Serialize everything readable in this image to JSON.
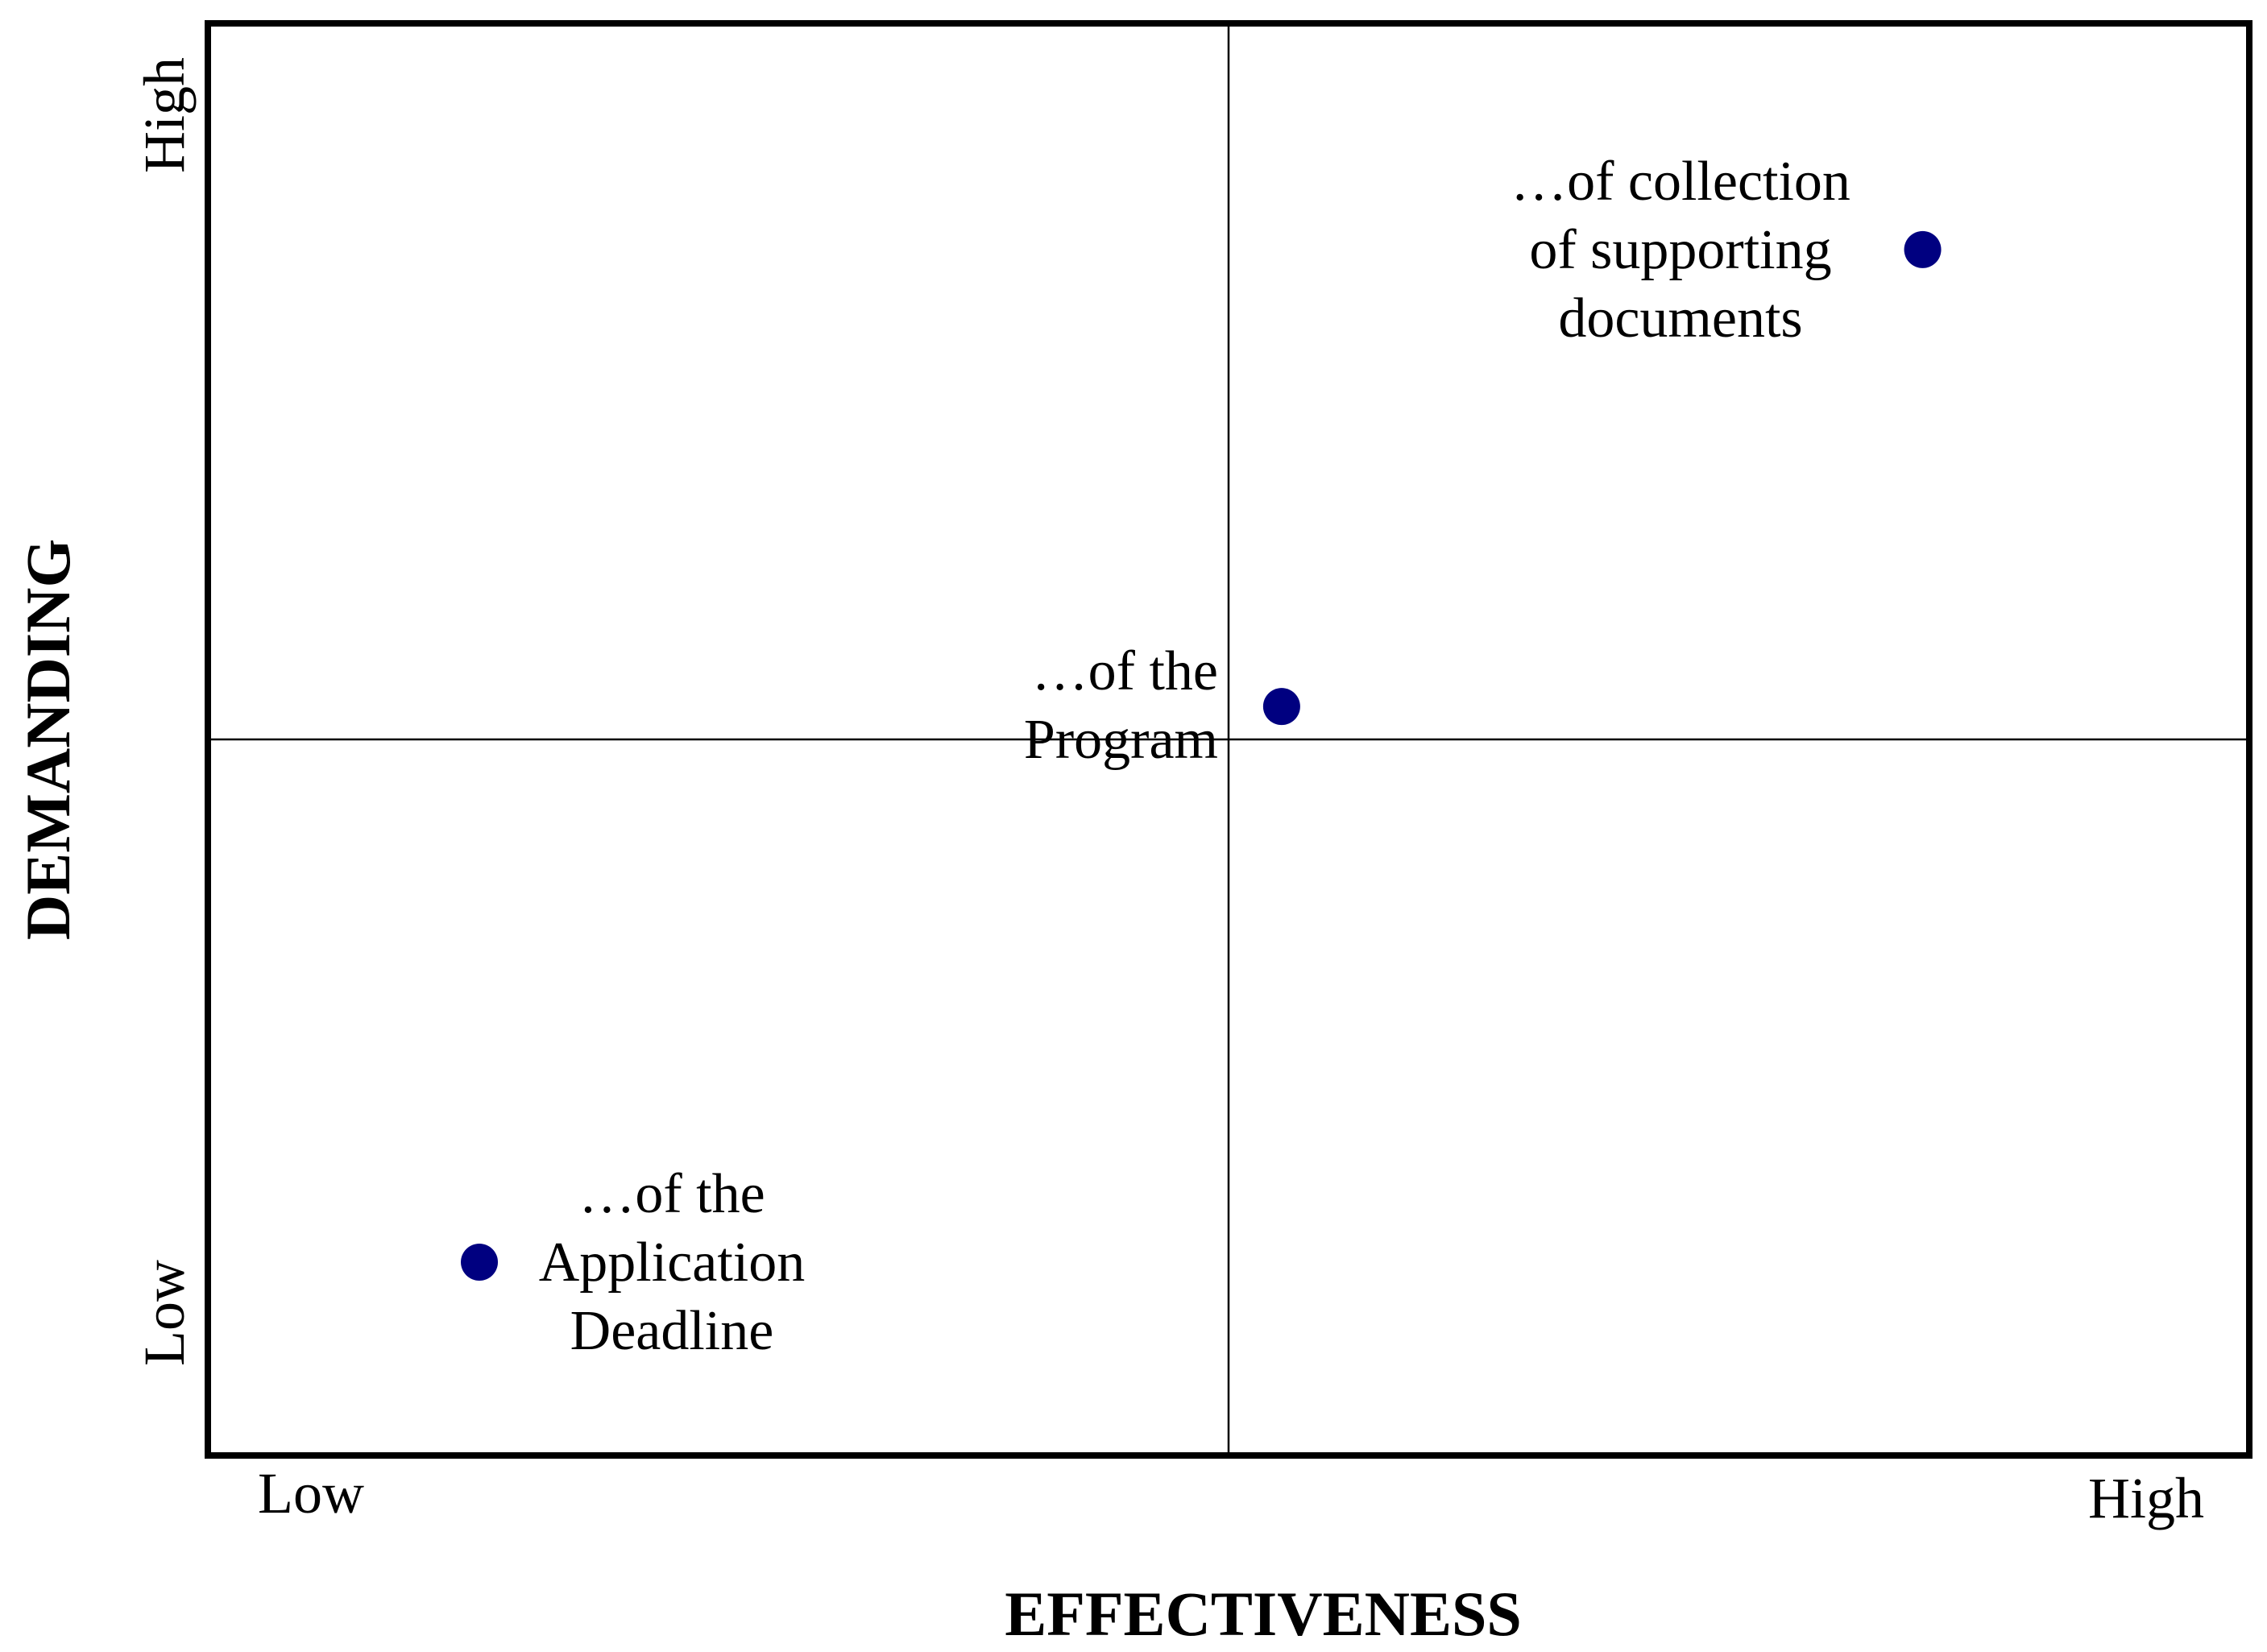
{
  "chart_data": {
    "type": "scatter",
    "xlabel": "EFFECTIVENESS",
    "ylabel": "DEMANDING",
    "x_range": [
      0,
      100
    ],
    "y_range": [
      0,
      100
    ],
    "x_axis_end_labels": {
      "low": "Low",
      "high": "High"
    },
    "y_axis_end_labels": {
      "low": "Low",
      "high": "High"
    },
    "quadrant_dividers": {
      "x": 50,
      "y": 50
    },
    "grid": false,
    "legend": "none",
    "point_color": "#000080",
    "points": [
      {
        "x": 13.3,
        "y": 13.5,
        "label_lines": [
          "…of the",
          "Application",
          "Deadline"
        ]
      },
      {
        "x": 52.6,
        "y": 52.3,
        "label_lines": [
          "…of the",
          "Program"
        ]
      },
      {
        "x": 84,
        "y": 84.2,
        "label_lines": [
          "…of collection",
          "of supporting",
          "documents"
        ]
      }
    ]
  }
}
